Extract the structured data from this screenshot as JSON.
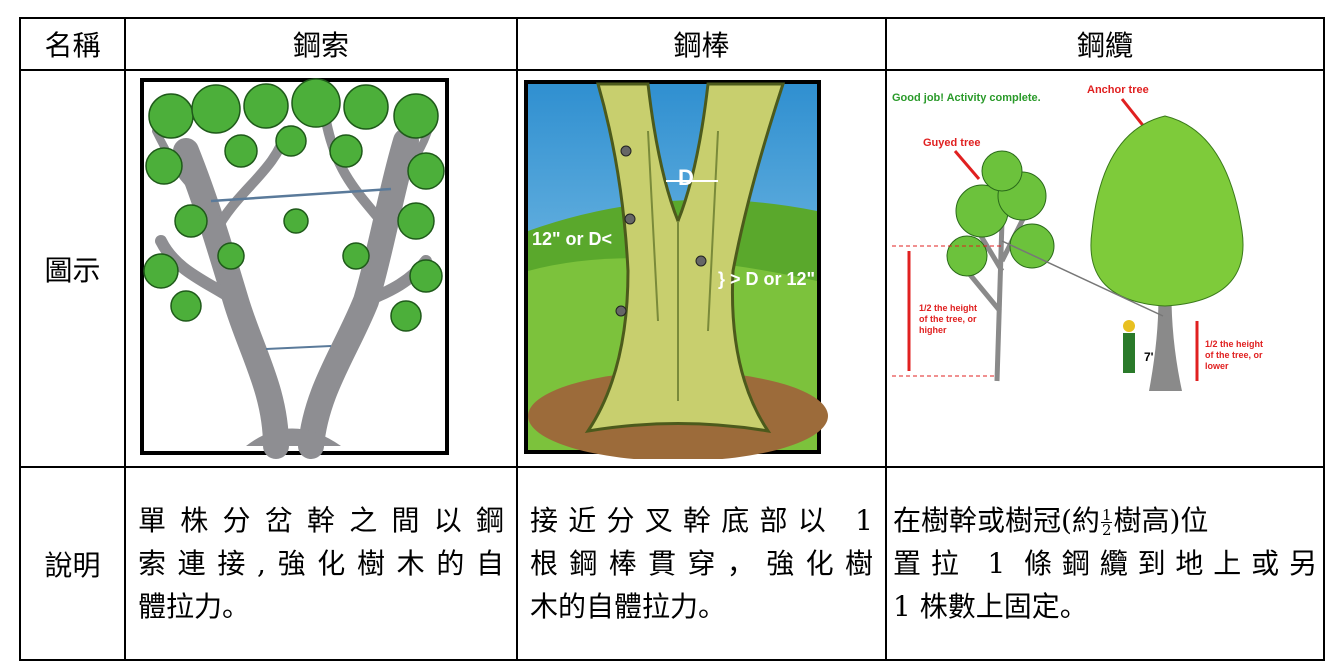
{
  "table": {
    "header": [
      "名稱",
      "鋼索",
      "鋼棒",
      "鋼纜"
    ],
    "illustration_label": "圖示",
    "description_label": "說明",
    "illustrations": [
      {},
      {
        "labels": [
          "D",
          "12\" or D<",
          "} > D or 12\""
        ]
      },
      {
        "labels": [
          "Good job! Activity complete.",
          "Anchor tree",
          "Guyed tree",
          "7'"
        ],
        "guyed_note": [
          "1/2 the height",
          "of the tree, or",
          "higher"
        ],
        "anchor_note": [
          "1/2 the height",
          "of the tree, or",
          "lower"
        ]
      }
    ],
    "descriptions": [
      {
        "lines": [
          "單株分岔幹之間以鋼",
          "索連接,強化樹木的自",
          "體拉力。"
        ]
      },
      {
        "lines": [
          "接近分叉幹底部以 1",
          "根鋼棒貫穿，強化樹",
          "木的自體拉力。"
        ]
      },
      {
        "first_line": {
          "before": "在樹幹或樹冠(約",
          "numerator": "1",
          "denominator": "2",
          "after": "樹高)位"
        },
        "lines": [
          "置拉 1 條鋼纜到地上或另",
          "1 株數上固定。"
        ]
      }
    ]
  }
}
